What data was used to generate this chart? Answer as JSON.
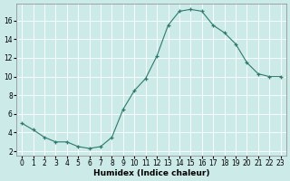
{
  "x": [
    0,
    1,
    2,
    3,
    4,
    5,
    6,
    7,
    8,
    9,
    10,
    11,
    12,
    13,
    14,
    15,
    16,
    17,
    18,
    19,
    20,
    21,
    22,
    23
  ],
  "y": [
    5,
    4.3,
    3.5,
    3.0,
    3.0,
    2.5,
    2.3,
    2.5,
    3.5,
    6.5,
    8.5,
    9.8,
    12.2,
    15.5,
    17.0,
    17.2,
    17.0,
    15.5,
    14.7,
    13.5,
    11.5,
    10.3,
    10.0,
    10.0
  ],
  "xlabel": "Humidex (Indice chaleur)",
  "xlim": [
    -0.5,
    23.5
  ],
  "ylim": [
    1.5,
    17.8
  ],
  "yticks": [
    2,
    4,
    6,
    8,
    10,
    12,
    14,
    16
  ],
  "xticks": [
    0,
    1,
    2,
    3,
    4,
    5,
    6,
    7,
    8,
    9,
    10,
    11,
    12,
    13,
    14,
    15,
    16,
    17,
    18,
    19,
    20,
    21,
    22,
    23
  ],
  "line_color": "#2d7a6e",
  "marker": "+",
  "bg_color": "#cceae7",
  "grid_color": "#ffffff",
  "label_fontsize": 6.5,
  "tick_fontsize": 5.5,
  "linewidth": 0.8,
  "markersize": 3.5,
  "markeredgewidth": 0.9
}
